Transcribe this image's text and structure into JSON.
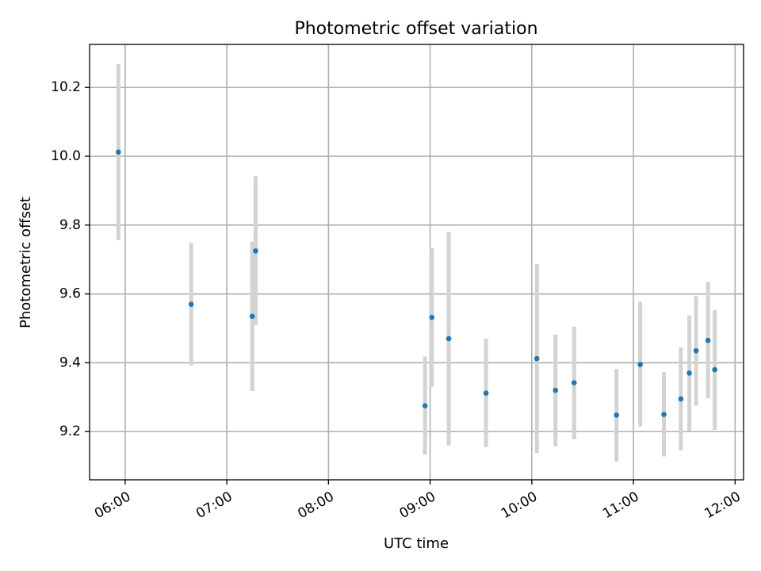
{
  "chart_data": {
    "type": "scatter",
    "title": "Photometric offset variation",
    "xlabel": "UTC time",
    "ylabel": "Photometric offset",
    "xlim": [
      "05:39",
      "12:05"
    ],
    "ylim": [
      9.06,
      10.325
    ],
    "x_ticks": [
      "06:00",
      "07:00",
      "08:00",
      "09:00",
      "10:00",
      "11:00",
      "12:00"
    ],
    "y_ticks": [
      9.2,
      9.4,
      9.6,
      9.8,
      10.0,
      10.2
    ],
    "grid": true,
    "colors": {
      "point": "#1f77b4",
      "errorbar": "#d3d3d3"
    },
    "series": [
      {
        "points": [
          {
            "x": "05:56",
            "y": 10.012,
            "low": 9.757,
            "high": 10.267
          },
          {
            "x": "06:39",
            "y": 9.57,
            "low": 9.392,
            "high": 9.748
          },
          {
            "x": "07:15",
            "y": 9.535,
            "low": 9.318,
            "high": 9.752
          },
          {
            "x": "07:17",
            "y": 9.725,
            "low": 9.51,
            "high": 9.942
          },
          {
            "x": "08:57",
            "y": 9.275,
            "low": 9.133,
            "high": 9.418
          },
          {
            "x": "09:01",
            "y": 9.532,
            "low": 9.33,
            "high": 9.733
          },
          {
            "x": "09:11",
            "y": 9.47,
            "low": 9.16,
            "high": 9.78
          },
          {
            "x": "09:33",
            "y": 9.312,
            "low": 9.155,
            "high": 9.47
          },
          {
            "x": "10:03",
            "y": 9.412,
            "low": 9.138,
            "high": 9.687
          },
          {
            "x": "10:14",
            "y": 9.32,
            "low": 9.158,
            "high": 9.482
          },
          {
            "x": "10:25",
            "y": 9.342,
            "low": 9.178,
            "high": 9.505
          },
          {
            "x": "10:50",
            "y": 9.248,
            "low": 9.113,
            "high": 9.382
          },
          {
            "x": "11:04",
            "y": 9.395,
            "low": 9.215,
            "high": 9.577
          },
          {
            "x": "11:18",
            "y": 9.25,
            "low": 9.128,
            "high": 9.373
          },
          {
            "x": "11:28",
            "y": 9.295,
            "low": 9.145,
            "high": 9.445
          },
          {
            "x": "11:33",
            "y": 9.37,
            "low": 9.202,
            "high": 9.537
          },
          {
            "x": "11:37",
            "y": 9.435,
            "low": 9.275,
            "high": 9.593
          },
          {
            "x": "11:44",
            "y": 9.465,
            "low": 9.297,
            "high": 9.635
          },
          {
            "x": "11:48",
            "y": 9.38,
            "low": 9.205,
            "high": 9.553
          }
        ]
      }
    ]
  }
}
